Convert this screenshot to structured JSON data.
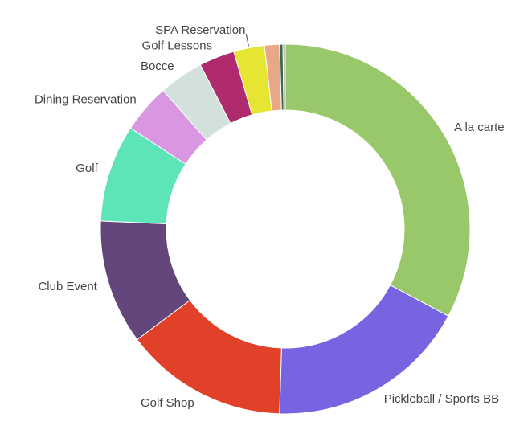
{
  "chart_data": {
    "type": "donut",
    "categories": [
      "A la carte",
      "Pickleball / Sports BB",
      "Golf Shop",
      "Club Event",
      "Golf",
      "Dining Reservation",
      "Bocce",
      "Golf Lessons",
      "SPA Reservation",
      null,
      null,
      null
    ],
    "values": [
      32.8,
      17.7,
      14.3,
      10.9,
      8.5,
      4.3,
      3.9,
      3.1,
      2.7,
      1.3,
      0.3,
      0.2
    ],
    "colors": [
      "#98c86a",
      "#7764e0",
      "#e04128",
      "#63467b",
      "#5de4b8",
      "#d897e0",
      "#d3e0dc",
      "#b02b6e",
      "#e6e632",
      "#e8a888",
      "#3c6b4a",
      "#8a8a8a"
    ]
  }
}
